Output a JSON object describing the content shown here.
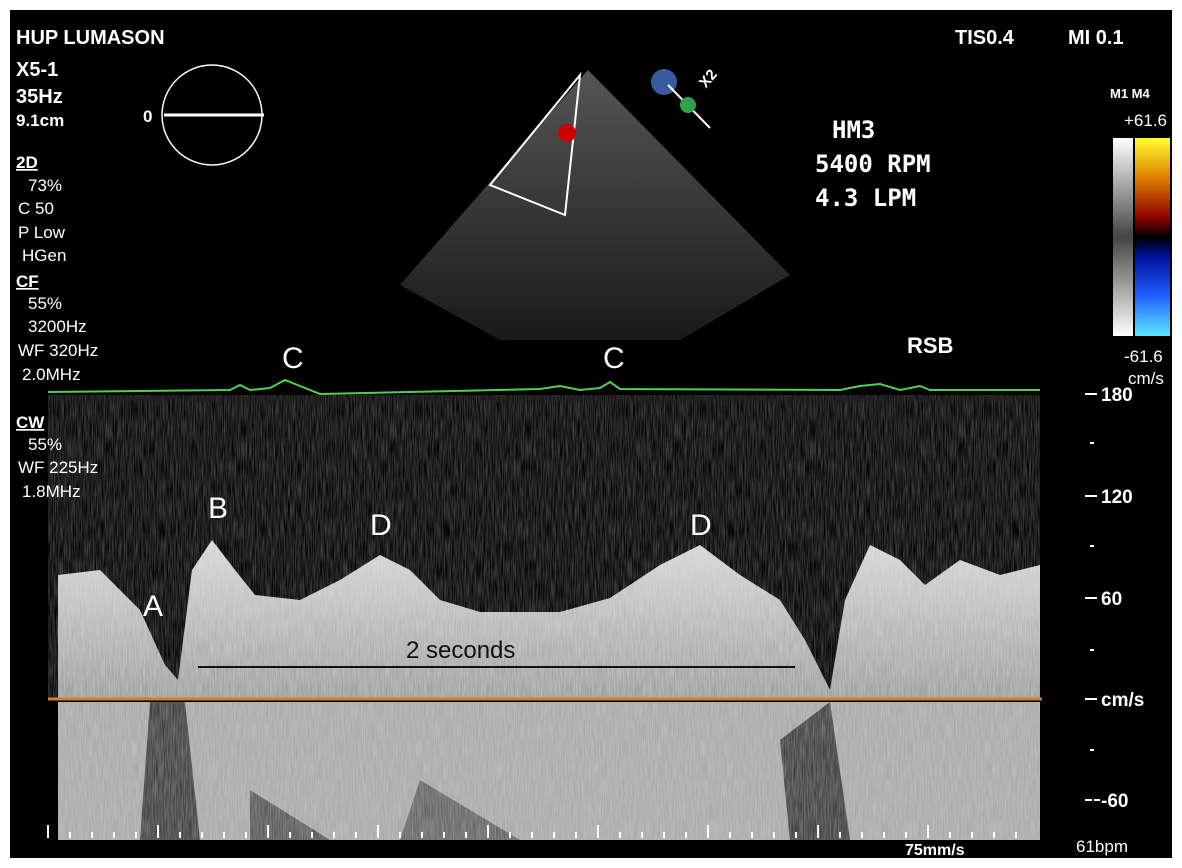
{
  "header": {
    "site": "HUP LUMASON",
    "probe": "X5-1",
    "frame_rate": "35Hz",
    "depth": "9.1cm",
    "angle": "0",
    "tis": "TIS0.4",
    "mi": "MI 0.1"
  },
  "settings": [
    {
      "label": "2D",
      "lines": [
        "73%",
        "C 50",
        "P Low",
        "HGen"
      ]
    },
    {
      "label": "CF",
      "lines": [
        "55%",
        "3200Hz",
        "WF 320Hz",
        "2.0MHz"
      ]
    },
    {
      "label": "CW",
      "lines": [
        "55%",
        "WF 225Hz",
        "1.8MHz"
      ]
    }
  ],
  "device": [
    "HM3",
    "5400 RPM",
    "4.3 LPM"
  ],
  "probe_marker": "X2",
  "color_scale": {
    "maps": "M1 M4",
    "max": "+61.6",
    "min": "-61.6",
    "unit": "cm/s"
  },
  "velocity_scale": {
    "labels": [
      "180",
      "120",
      "60",
      "cm/s",
      "-60"
    ]
  },
  "annotations": [
    "A",
    "B",
    "C",
    "C",
    "D",
    "D",
    "RSB",
    "2 seconds"
  ],
  "footer": {
    "sweep": "75mm/s",
    "heart_rate": "61bpm"
  }
}
